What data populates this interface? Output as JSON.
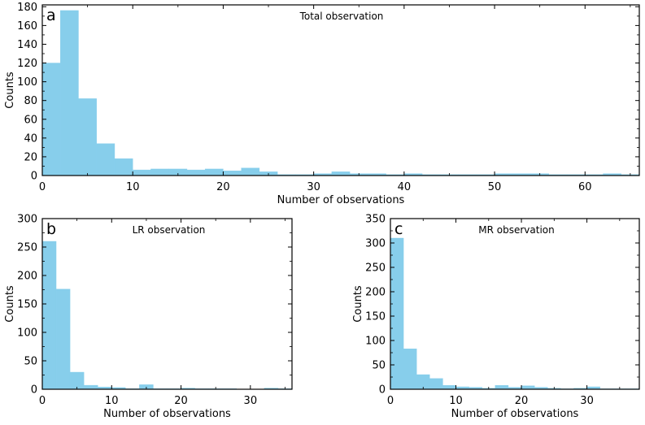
{
  "chart_data": [
    {
      "type": "bar",
      "panel_label": "a",
      "title": "Total observation",
      "xlabel": "Number of observations",
      "ylabel": "Counts",
      "xlim": [
        0,
        66
      ],
      "ylim": [
        0,
        182
      ],
      "xticks": [
        0,
        10,
        20,
        30,
        40,
        50,
        60
      ],
      "yticks": [
        0,
        20,
        40,
        60,
        80,
        100,
        120,
        140,
        160,
        180
      ],
      "bin_width": 2,
      "bin_edges_start": [
        0,
        2,
        4,
        6,
        8,
        10,
        12,
        14,
        16,
        18,
        20,
        22,
        24,
        26,
        28,
        30,
        32,
        34,
        36,
        38,
        40,
        42,
        44,
        46,
        48,
        50,
        52,
        54,
        56,
        58,
        60,
        62,
        64
      ],
      "values": [
        120,
        176,
        82,
        34,
        18,
        6,
        7,
        7,
        6,
        7,
        5,
        8,
        4,
        1,
        1,
        2,
        4,
        2,
        2,
        1,
        2,
        1,
        1,
        1,
        1,
        2,
        2,
        2,
        1,
        1,
        1,
        2,
        1
      ],
      "color": "#87ceeb"
    },
    {
      "type": "bar",
      "panel_label": "b",
      "title": "LR observation",
      "xlabel": "Number of observations",
      "ylabel": "Counts",
      "xlim": [
        0,
        36
      ],
      "ylim": [
        0,
        300
      ],
      "xticks": [
        0,
        10,
        20,
        30
      ],
      "yticks": [
        0,
        50,
        100,
        150,
        200,
        250,
        300
      ],
      "bin_width": 2,
      "bin_edges_start": [
        0,
        2,
        4,
        6,
        8,
        10,
        12,
        14,
        16,
        18,
        20,
        22,
        24,
        26,
        28,
        30,
        32,
        34
      ],
      "values": [
        260,
        176,
        30,
        7,
        4,
        3,
        1,
        8,
        1,
        1,
        2,
        1,
        1,
        1,
        0,
        0,
        2,
        1
      ],
      "color": "#87ceeb"
    },
    {
      "type": "bar",
      "panel_label": "c",
      "title": "MR observation",
      "xlabel": "Number of observations",
      "ylabel": "Counts",
      "xlim": [
        0,
        38
      ],
      "ylim": [
        0,
        350
      ],
      "xticks": [
        0,
        10,
        20,
        30
      ],
      "yticks": [
        0,
        50,
        100,
        150,
        200,
        250,
        300,
        350
      ],
      "bin_width": 2,
      "bin_edges_start": [
        0,
        2,
        4,
        6,
        8,
        10,
        12,
        14,
        16,
        18,
        20,
        22,
        24,
        26,
        28,
        30,
        32,
        34,
        36
      ],
      "values": [
        310,
        83,
        30,
        22,
        8,
        5,
        4,
        2,
        8,
        4,
        7,
        4,
        2,
        1,
        2,
        5,
        1,
        1,
        1
      ],
      "color": "#87ceeb"
    }
  ]
}
